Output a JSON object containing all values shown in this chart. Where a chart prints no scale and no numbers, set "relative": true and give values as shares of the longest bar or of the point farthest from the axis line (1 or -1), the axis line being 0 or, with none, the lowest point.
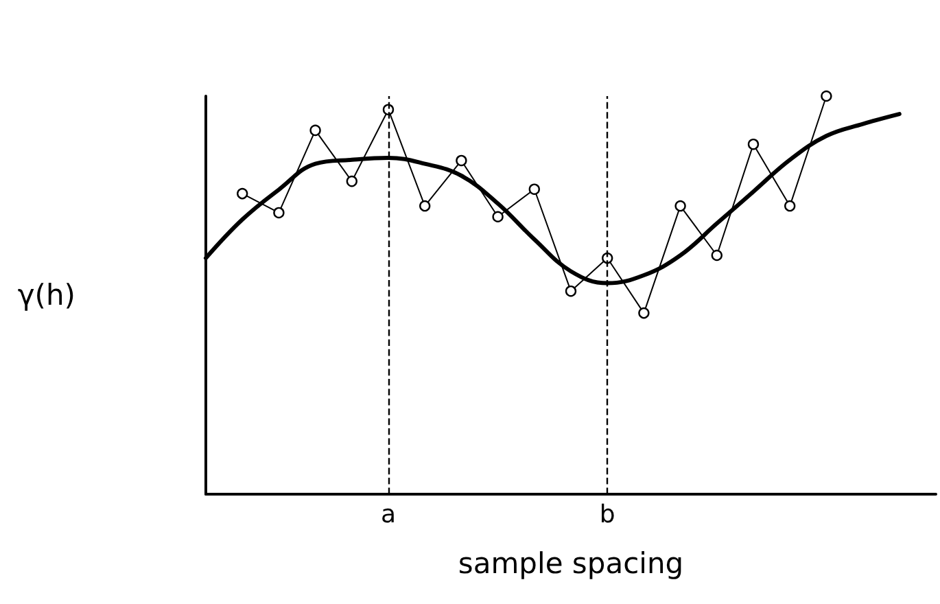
{
  "chart_data": {
    "type": "line",
    "relative": true,
    "xlabel": "sample spacing",
    "ylabel": "γ(h)",
    "categories": [
      null,
      null,
      null,
      null,
      null,
      "a",
      null,
      null,
      null,
      null,
      null,
      "b",
      null,
      null,
      null,
      null,
      null,
      null,
      null,
      null,
      null
    ],
    "marker": "circle",
    "grid": false,
    "series": [
      {
        "color": "#000000",
        "values": [
          null,
          0.755,
          0.707,
          0.914,
          0.786,
          0.966,
          0.724,
          0.838,
          0.697,
          0.766,
          0.51,
          0.593,
          0.455,
          0.724,
          0.6,
          0.879,
          0.724,
          1,
          null,
          null,
          null
        ]
      },
      {
        "color": "#000000",
        "marker": "none",
        "values": [
          0.593,
          0.69,
          0.765,
          0.83,
          0.84,
          0.845,
          0.83,
          0.8,
          0.73,
          0.64,
          0.56,
          0.53,
          0.55,
          0.6,
          0.68,
          0.76,
          0.84,
          0.9,
          0.93,
          0.955,
          null
        ]
      }
    ],
    "ref_lines": [
      {
        "axis": "x",
        "value": "a",
        "line_style": "dashed",
        "color": "#000000"
      },
      {
        "axis": "x",
        "value": "b",
        "line_style": "dashed",
        "color": "#000000"
      }
    ]
  }
}
